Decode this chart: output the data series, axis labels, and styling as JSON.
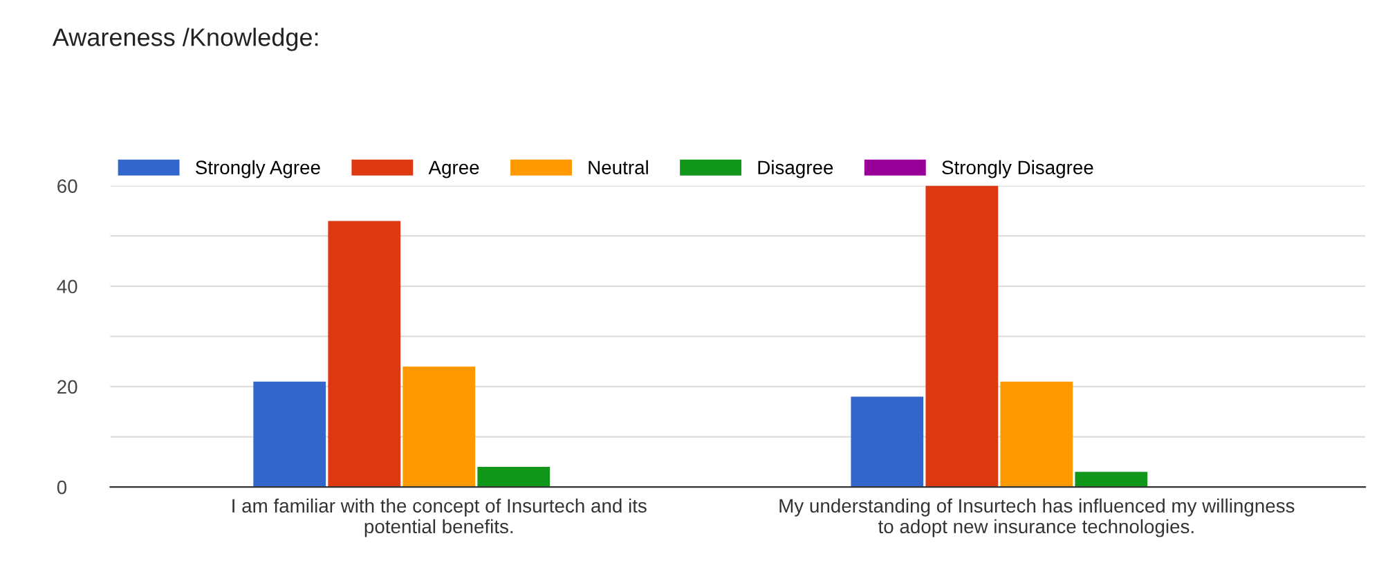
{
  "chart_data": {
    "type": "bar",
    "title": "Awareness /Knowledge:",
    "categories": [
      "I am familiar with the concept of Insurtech and its potential benefits.",
      "My understanding of Insurtech has influenced my willingness to adopt new insurance technologies."
    ],
    "series": [
      {
        "name": "Strongly Agree",
        "color": "#3366cc",
        "values": [
          21,
          18
        ]
      },
      {
        "name": "Agree",
        "color": "#dc3912",
        "values": [
          53,
          60
        ]
      },
      {
        "name": "Neutral",
        "color": "#ff9900",
        "values": [
          24,
          21
        ]
      },
      {
        "name": "Disagree",
        "color": "#109618",
        "values": [
          4,
          3
        ]
      },
      {
        "name": "Strongly Disagree",
        "color": "#990099",
        "values": [
          0,
          0
        ]
      }
    ],
    "ylim": [
      0,
      60
    ],
    "yticks": [
      0,
      {
        "value": 10,
        "label": null
      },
      20,
      {
        "value": 30,
        "label": null
      },
      40,
      {
        "value": 50,
        "label": null
      },
      60
    ],
    "grid": "y",
    "legend": "top left"
  }
}
